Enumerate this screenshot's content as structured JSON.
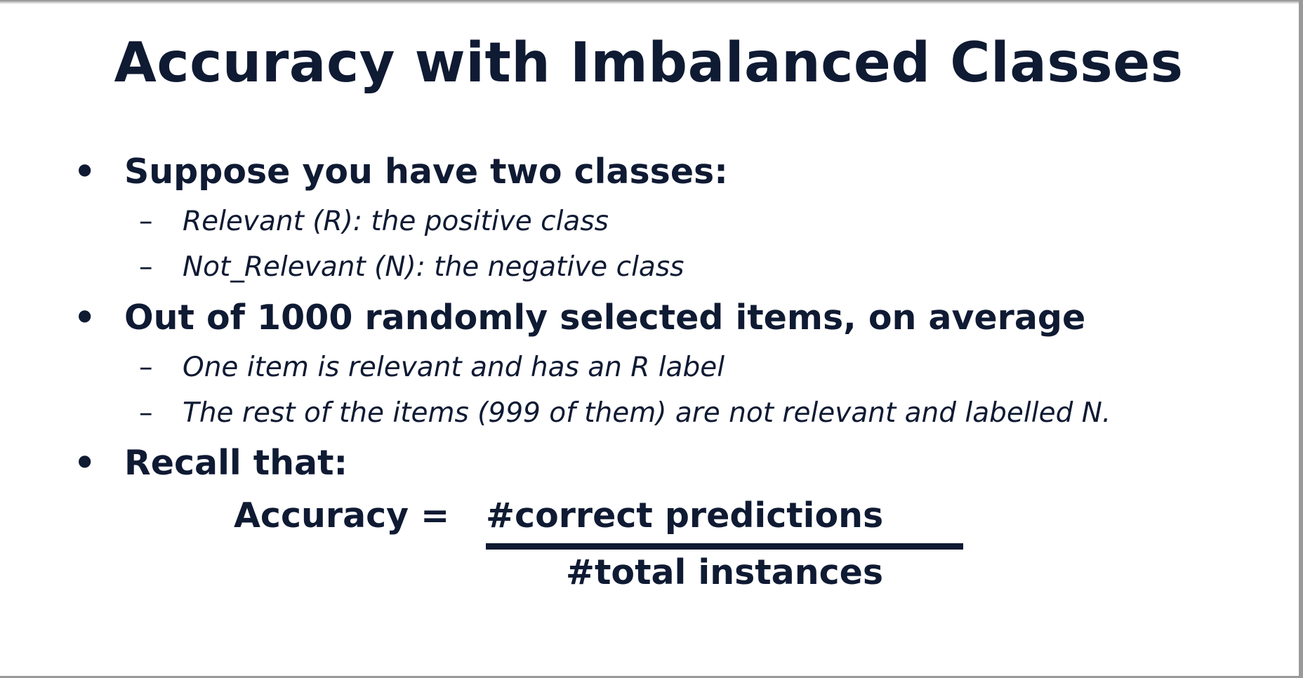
{
  "slide": {
    "title": "Accuracy with Imbalanced Classes",
    "bullets": [
      {
        "marker": "•",
        "text": "Suppose you have two classes:",
        "subitems": [
          {
            "marker": "–",
            "text": "Relevant (R):  the positive class"
          },
          {
            "marker": "–",
            "text": "Not_Relevant (N): the negative class"
          }
        ]
      },
      {
        "marker": "•",
        "text": "Out of 1000 randomly selected items, on average",
        "subitems": [
          {
            "marker": "–",
            "text": "One item is relevant and has an R label"
          },
          {
            "marker": "–",
            "text": "The rest of the items (999 of them) are not relevant and labelled N."
          }
        ]
      },
      {
        "marker": "•",
        "text": "Recall that:",
        "subitems": []
      }
    ],
    "formula": {
      "lhs": "Accuracy =",
      "numerator": "#correct predictions",
      "denominator": "#total instances"
    }
  }
}
